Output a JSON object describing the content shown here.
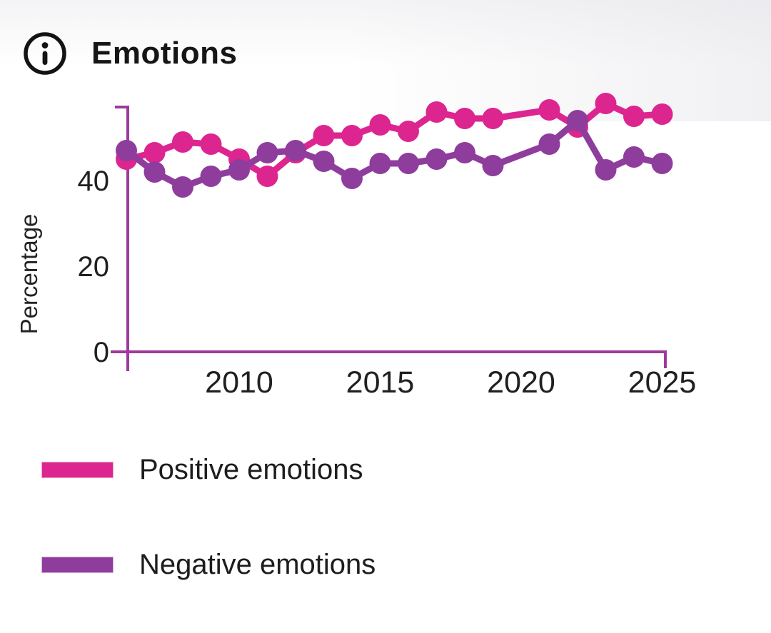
{
  "header": {
    "title": "Emotions",
    "info_icon": "info-icon"
  },
  "colors": {
    "positive": "#dd2590",
    "negative": "#8e3d9d",
    "axis": "#9d3a9d",
    "text": "#1d1d1d",
    "background": "#ffffff"
  },
  "chart_data": {
    "type": "line",
    "title": "Emotions",
    "xlabel": "",
    "ylabel": "Percentage",
    "x": [
      2006,
      2007,
      2008,
      2009,
      2010,
      2011,
      2012,
      2013,
      2014,
      2015,
      2016,
      2017,
      2018,
      2019,
      2021,
      2022,
      2023,
      2024,
      2025
    ],
    "series": [
      {
        "name": "Positive emotions",
        "color": "#dd2590",
        "values": [
          45,
          46.5,
          49,
          48.5,
          45,
          41,
          46.5,
          50.5,
          50.5,
          53,
          51.5,
          56,
          54.5,
          54.5,
          56.5,
          52.5,
          58,
          55,
          55.5
        ]
      },
      {
        "name": "Negative emotions",
        "color": "#8e3d9d",
        "values": [
          47,
          42,
          38.5,
          41,
          42.5,
          46.5,
          47,
          44.5,
          40.5,
          44,
          44,
          45,
          46.5,
          43.5,
          48.5,
          54,
          42.5,
          45.5,
          44
        ]
      }
    ],
    "xticks": [
      2010,
      2015,
      2020,
      2025
    ],
    "yticks": [
      0,
      20,
      40
    ],
    "ylim": [
      0,
      58
    ],
    "grid": false,
    "legend_position": "bottom-left",
    "notes": "No data markers for 2020; lines connect 2019 directly to 2021."
  },
  "legend": {
    "items": [
      {
        "label": "Positive emotions",
        "color": "#dd2590"
      },
      {
        "label": "Negative emotions",
        "color": "#8e3d9d"
      }
    ]
  }
}
